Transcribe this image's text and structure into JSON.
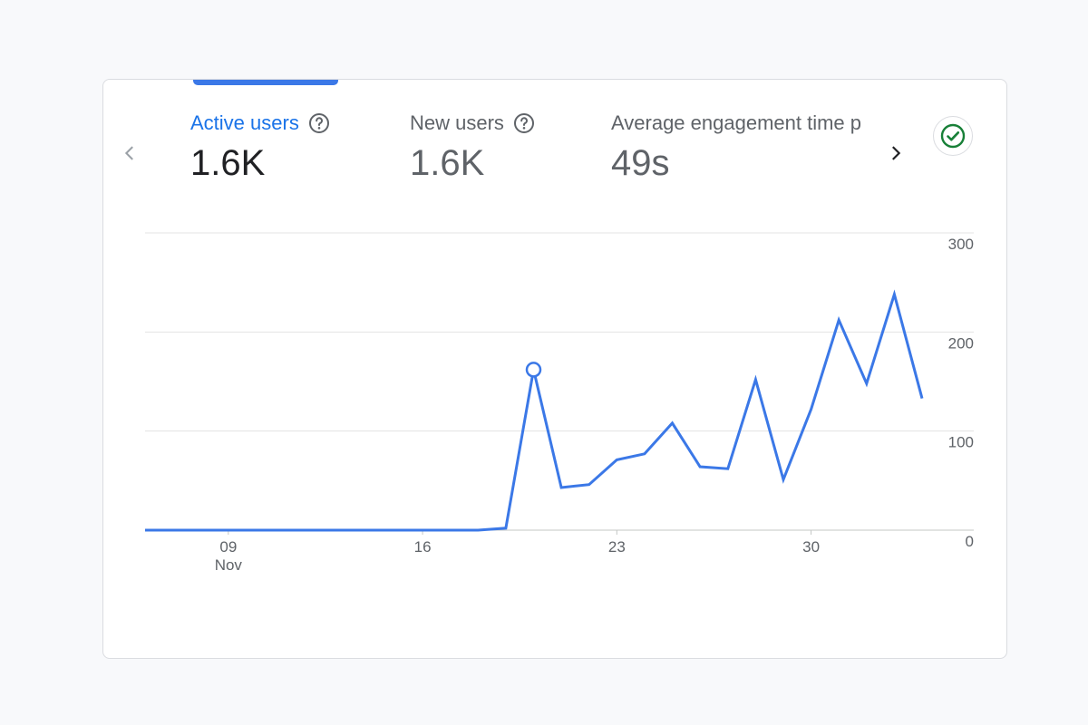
{
  "metrics": [
    {
      "label": "Active users",
      "value": "1.6K",
      "has_help": true,
      "active": true
    },
    {
      "label": "New users",
      "value": "1.6K",
      "has_help": true,
      "active": false
    },
    {
      "label": "Average engagement time p",
      "value": "49s",
      "has_help": false,
      "active": false
    }
  ],
  "nav": {
    "prev_icon": "chevron-left-icon",
    "next_icon": "chevron-right-icon"
  },
  "status_icon": "check-circle-icon",
  "colors": {
    "accent": "#1a73e8",
    "line": "#3b78e7",
    "check": "#188038",
    "grid": "#e0e0e0"
  },
  "chart_data": {
    "type": "line",
    "x_unit": "day",
    "month_label": "Nov",
    "x_start": "2023-11-06",
    "x_end": "2023-12-04",
    "x_tick_labels": [
      "09",
      "16",
      "23",
      "30"
    ],
    "y_ticks": [
      "300",
      "200",
      "100",
      "0"
    ],
    "ylim": [
      0,
      300
    ],
    "series": [
      {
        "name": "Active users",
        "points": [
          {
            "x": "2023-11-06",
            "y": 0
          },
          {
            "x": "2023-11-07",
            "y": 0
          },
          {
            "x": "2023-11-08",
            "y": 0
          },
          {
            "x": "2023-11-09",
            "y": 0
          },
          {
            "x": "2023-11-10",
            "y": 0
          },
          {
            "x": "2023-11-11",
            "y": 0
          },
          {
            "x": "2023-11-12",
            "y": 0
          },
          {
            "x": "2023-11-13",
            "y": 0
          },
          {
            "x": "2023-11-14",
            "y": 0
          },
          {
            "x": "2023-11-15",
            "y": 0
          },
          {
            "x": "2023-11-16",
            "y": 0
          },
          {
            "x": "2023-11-17",
            "y": 0
          },
          {
            "x": "2023-11-18",
            "y": 0
          },
          {
            "x": "2023-11-19",
            "y": 2
          },
          {
            "x": "2023-11-20",
            "y": 162
          },
          {
            "x": "2023-11-21",
            "y": 43
          },
          {
            "x": "2023-11-22",
            "y": 46
          },
          {
            "x": "2023-11-23",
            "y": 71
          },
          {
            "x": "2023-11-24",
            "y": 77
          },
          {
            "x": "2023-11-25",
            "y": 108
          },
          {
            "x": "2023-11-26",
            "y": 64
          },
          {
            "x": "2023-11-27",
            "y": 62
          },
          {
            "x": "2023-11-28",
            "y": 152
          },
          {
            "x": "2023-11-29",
            "y": 51
          },
          {
            "x": "2023-11-30",
            "y": 122
          },
          {
            "x": "2023-12-01",
            "y": 212
          },
          {
            "x": "2023-12-02",
            "y": 148
          },
          {
            "x": "2023-12-03",
            "y": 238
          },
          {
            "x": "2023-12-04",
            "y": 133
          }
        ]
      }
    ],
    "highlight": {
      "x": "2023-11-20",
      "y": 162
    },
    "grid": true
  }
}
